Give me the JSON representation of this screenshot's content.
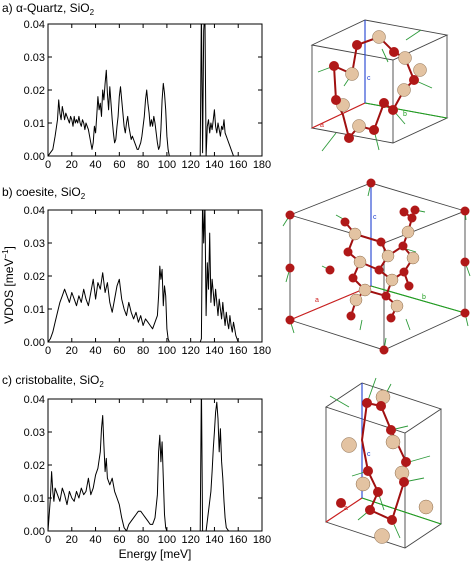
{
  "figure": {
    "xlabel": "Energy [meV]",
    "ylabel": "VDOS [meV",
    "ylabel_exp": "−1",
    "ylabel_close": "]",
    "panels": [
      {
        "prefix": "a) α-Quartz, SiO",
        "sub": "2"
      },
      {
        "prefix": "b) coesite, SiO",
        "sub": "2"
      },
      {
        "prefix": "c) cristobalite, SiO",
        "sub": "2"
      }
    ]
  },
  "structure": {
    "axis_names": [
      "a",
      "b",
      "c"
    ],
    "colors": {
      "si": "#b01818",
      "o": "#e3c3a2",
      "bond": "#a01010",
      "arrow": "#2d9a3a",
      "axis_a": "#d02020",
      "axis_b": "#20a020",
      "axis_c": "#2040d0",
      "box": "#444444"
    }
  },
  "chart_data": [
    {
      "type": "line",
      "title": "a) α-Quartz, SiO2",
      "xlabel": "Energy [meV]",
      "ylabel": "VDOS [meV−1]",
      "xlim": [
        0,
        180
      ],
      "ylim": [
        0,
        0.04
      ],
      "x_ticks": [
        0,
        20,
        40,
        60,
        80,
        100,
        120,
        140,
        160,
        180
      ],
      "y_ticks": [
        "0.00",
        "0.01",
        "0.02",
        "0.03",
        "0.04"
      ],
      "series": [
        {
          "x": [
            0,
            2,
            4,
            6,
            8,
            9,
            10,
            11,
            12,
            13,
            14,
            15,
            16,
            17,
            18,
            19,
            20,
            21,
            22,
            23,
            24,
            25,
            26,
            27,
            28,
            29,
            30,
            31,
            32,
            33,
            34,
            35,
            36,
            37,
            38,
            39,
            40,
            41,
            42,
            43,
            44,
            45,
            46,
            47,
            48,
            49,
            50,
            51,
            52,
            53,
            54,
            55,
            56,
            57,
            58,
            59,
            60,
            61,
            62,
            63,
            64,
            65,
            66,
            67,
            68,
            69,
            70,
            71,
            72,
            73,
            74,
            75,
            76,
            77,
            78,
            79,
            80,
            81,
            82,
            83,
            84,
            85,
            86,
            87,
            88,
            89,
            90,
            91,
            92,
            93,
            94,
            95,
            96,
            97,
            98,
            99,
            100,
            101,
            102,
            104,
            110,
            120,
            128,
            129,
            130,
            131,
            132,
            133,
            134,
            135,
            136,
            137,
            138,
            139,
            140,
            141,
            142,
            143,
            144,
            145,
            146,
            147,
            148,
            149,
            150,
            151,
            152,
            153,
            154,
            155,
            156,
            160,
            180
          ],
          "y": [
            0,
            0.001,
            0.002,
            0.006,
            0.011,
            0.017,
            0.013,
            0.011,
            0.015,
            0.013,
            0.011,
            0.013,
            0.012,
            0.011,
            0.01,
            0.012,
            0.011,
            0.009,
            0.012,
            0.01,
            0.011,
            0.01,
            0.012,
            0.01,
            0.009,
            0.011,
            0.01,
            0.008,
            0.01,
            0.009,
            0.008,
            0.006,
            0.004,
            0.002,
            0.004,
            0.009,
            0.007,
            0.012,
            0.018,
            0.014,
            0.016,
            0.012,
            0.02,
            0.017,
            0.022,
            0.026,
            0.019,
            0.014,
            0.021,
            0.016,
            0.011,
            0.007,
            0.004,
            0.005,
            0.009,
            0.012,
            0.018,
            0.021,
            0.017,
            0.013,
            0.009,
            0.007,
            0.01,
            0.012,
            0.009,
            0.007,
            0.005,
            0.006,
            0.005,
            0.004,
            0.003,
            0.002,
            0.002,
            0.003,
            0.004,
            0.006,
            0.009,
            0.012,
            0.017,
            0.02,
            0.016,
            0.013,
            0.009,
            0.011,
            0.009,
            0.012,
            0.01,
            0.007,
            0.004,
            0.002,
            0.003,
            0.008,
            0.017,
            0.022,
            0.019,
            0.014,
            0.006,
            0.002,
            0.0,
            0.0,
            0.0,
            0.0,
            0.0,
            0.045,
            0.001,
            0.038,
            0.044,
            0.0,
            0.009,
            0.011,
            0.007,
            0.01,
            0.008,
            0.011,
            0.014,
            0.009,
            0.007,
            0.01,
            0.008,
            0.006,
            0.009,
            0.008,
            0.011,
            0.007,
            0.006,
            0.005,
            0.004,
            0.003,
            0.002,
            0.001,
            0.0,
            0.0,
            0.0
          ]
        }
      ]
    },
    {
      "type": "line",
      "title": "b) coesite, SiO2",
      "xlabel": "Energy [meV]",
      "ylabel": "VDOS [meV−1]",
      "xlim": [
        0,
        180
      ],
      "ylim": [
        0,
        0.04
      ],
      "x_ticks": [
        0,
        20,
        40,
        60,
        80,
        100,
        120,
        140,
        160,
        180
      ],
      "y_ticks": [
        "0.00",
        "0.01",
        "0.02",
        "0.03",
        "0.04"
      ],
      "series": [
        {
          "x": [
            0,
            2,
            4,
            6,
            8,
            10,
            12,
            14,
            16,
            18,
            20,
            22,
            24,
            26,
            28,
            30,
            32,
            34,
            36,
            38,
            40,
            42,
            44,
            46,
            48,
            50,
            52,
            54,
            56,
            58,
            60,
            62,
            64,
            66,
            68,
            70,
            72,
            74,
            76,
            78,
            80,
            82,
            84,
            86,
            88,
            90,
            92,
            93,
            94,
            95,
            96,
            97,
            98,
            99,
            100,
            101,
            102,
            104,
            110,
            120,
            128,
            129,
            130,
            131,
            132,
            133,
            134,
            135,
            136,
            137,
            138,
            139,
            140,
            141,
            142,
            143,
            144,
            145,
            146,
            147,
            148,
            149,
            150,
            151,
            152,
            153,
            154,
            155,
            156,
            157,
            158,
            160,
            180
          ],
          "y": [
            0,
            0.001,
            0.003,
            0.006,
            0.009,
            0.012,
            0.014,
            0.016,
            0.014,
            0.012,
            0.015,
            0.013,
            0.011,
            0.014,
            0.012,
            0.016,
            0.013,
            0.011,
            0.015,
            0.019,
            0.013,
            0.018,
            0.016,
            0.021,
            0.015,
            0.018,
            0.012,
            0.009,
            0.013,
            0.017,
            0.019,
            0.013,
            0.01,
            0.008,
            0.012,
            0.009,
            0.007,
            0.009,
            0.006,
            0.008,
            0.005,
            0.007,
            0.006,
            0.005,
            0.004,
            0.006,
            0.008,
            0.014,
            0.023,
            0.019,
            0.022,
            0.011,
            0.017,
            0.014,
            0.004,
            0.001,
            0.0,
            0.0,
            0.0,
            0.0,
            0.0,
            0.001,
            0.044,
            0.03,
            0.042,
            0.008,
            0.024,
            0.016,
            0.033,
            0.012,
            0.019,
            0.015,
            0.011,
            0.016,
            0.012,
            0.008,
            0.013,
            0.01,
            0.007,
            0.012,
            0.008,
            0.005,
            0.009,
            0.006,
            0.004,
            0.008,
            0.005,
            0.003,
            0.006,
            0.004,
            0.002,
            0.0,
            0.0
          ]
        }
      ]
    },
    {
      "type": "line",
      "title": "c) cristobalite, SiO2",
      "xlabel": "Energy [meV]",
      "ylabel": "VDOS [meV−1]",
      "xlim": [
        0,
        180
      ],
      "ylim": [
        0,
        0.04
      ],
      "x_ticks": [
        0,
        20,
        40,
        60,
        80,
        100,
        120,
        140,
        160,
        180
      ],
      "y_ticks": [
        "0.00",
        "0.01",
        "0.02",
        "0.03",
        "0.04"
      ],
      "series": [
        {
          "x": [
            0,
            2,
            3,
            4,
            5,
            6,
            8,
            10,
            12,
            14,
            16,
            18,
            20,
            22,
            24,
            26,
            28,
            30,
            32,
            34,
            36,
            38,
            40,
            42,
            44,
            45,
            46,
            47,
            48,
            49,
            50,
            52,
            54,
            56,
            58,
            60,
            62,
            64,
            66,
            68,
            70,
            72,
            74,
            76,
            78,
            80,
            82,
            84,
            86,
            88,
            90,
            92,
            93,
            94,
            95,
            96,
            97,
            98,
            99,
            100,
            102,
            104,
            110,
            120,
            128,
            129,
            130,
            131,
            132,
            133,
            134,
            135,
            136,
            137,
            138,
            139,
            140,
            141,
            142,
            143,
            144,
            145,
            146,
            147,
            148,
            149,
            150,
            152,
            160,
            180
          ],
          "y": [
            0,
            0.01,
            0.018,
            0.012,
            0.009,
            0.013,
            0.011,
            0.009,
            0.013,
            0.011,
            0.008,
            0.012,
            0.01,
            0.009,
            0.012,
            0.01,
            0.013,
            0.011,
            0.012,
            0.016,
            0.011,
            0.013,
            0.017,
            0.019,
            0.024,
            0.031,
            0.035,
            0.026,
            0.018,
            0.022,
            0.016,
            0.014,
            0.016,
            0.012,
            0.01,
            0.008,
            0.004,
            0.001,
            0.0,
            0.002,
            0.003,
            0.004,
            0.005,
            0.006,
            0.006,
            0.005,
            0.004,
            0.003,
            0.002,
            0.002,
            0.004,
            0.011,
            0.024,
            0.029,
            0.021,
            0.027,
            0.016,
            0.005,
            0.001,
            0.0,
            0.0,
            0.0,
            0.0,
            0.0,
            0.0,
            0.045,
            0.0,
            0.0,
            0.0,
            0.0,
            0.003,
            0.006,
            0.009,
            0.012,
            0.018,
            0.025,
            0.03,
            0.036,
            0.039,
            0.034,
            0.024,
            0.031,
            0.021,
            0.016,
            0.009,
            0.004,
            0.001,
            0.0,
            0.0,
            0.0
          ]
        }
      ]
    }
  ]
}
